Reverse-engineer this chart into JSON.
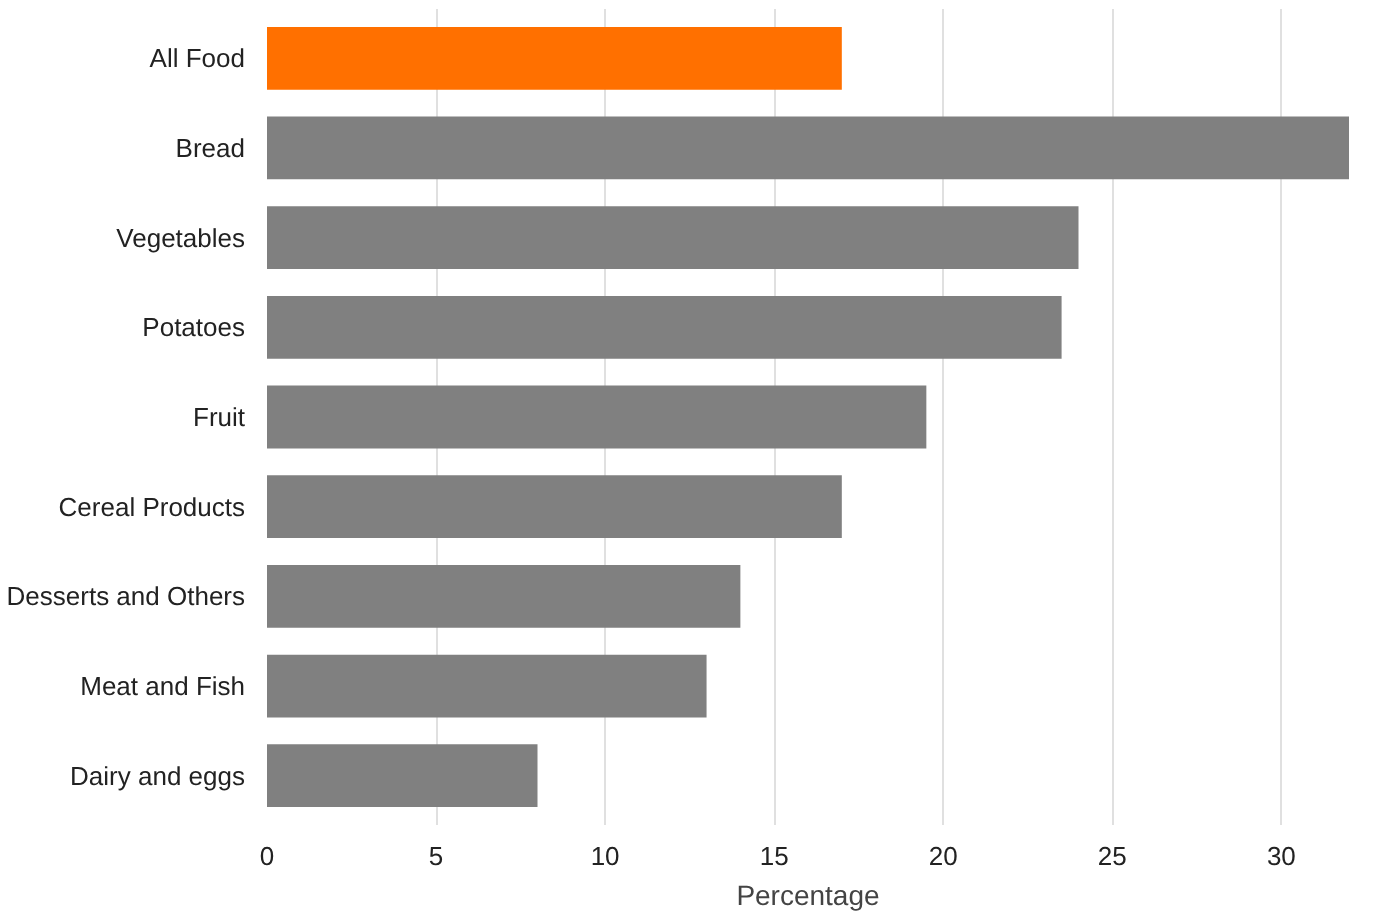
{
  "chart_data": {
    "type": "bar",
    "orientation": "horizontal",
    "xlabel": "Percentage",
    "categories": [
      "All Food",
      "Bread",
      "Vegetables",
      "Potatoes",
      "Fruit",
      "Cereal Products",
      "Desserts and Others",
      "Meat and Fish",
      "Dairy and eggs"
    ],
    "values": [
      17,
      32,
      24,
      23.5,
      19.5,
      17,
      14,
      13,
      8
    ],
    "colors": [
      "#ff7000",
      "#808080",
      "#808080",
      "#808080",
      "#808080",
      "#808080",
      "#808080",
      "#808080",
      "#808080"
    ],
    "xlim": [
      0,
      32
    ],
    "xticks": [
      0,
      5,
      10,
      15,
      20,
      25,
      30
    ],
    "grid": "x"
  }
}
